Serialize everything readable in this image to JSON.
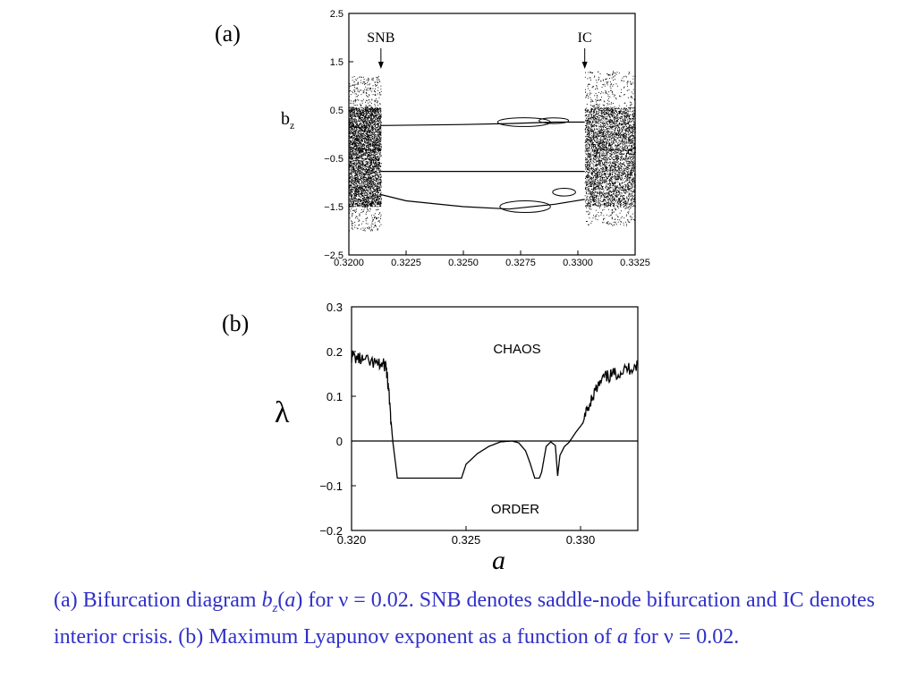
{
  "chart_data": [
    {
      "type": "scatter",
      "panel_label": "(a)",
      "ylabel": "b",
      "ylabel_sub": "z",
      "xlim": [
        0.32,
        0.3325
      ],
      "ylim": [
        -2.5,
        2.5
      ],
      "xticks": [
        "0.3200",
        "0.3225",
        "0.3250",
        "0.3275",
        "0.3300",
        "0.3325"
      ],
      "yticks": [
        "2.5",
        "1.5",
        "0.5",
        "−0.5",
        "−1.5",
        "−2.5"
      ],
      "annotations": [
        {
          "text": "SNB",
          "x": 0.3214
        },
        {
          "text": "IC",
          "x": 0.3303
        }
      ],
      "regions": [
        {
          "kind": "chaotic_band",
          "x": [
            0.32,
            0.3214
          ],
          "y": [
            -2.0,
            1.2
          ]
        },
        {
          "kind": "chaotic_band",
          "x": [
            0.3303,
            0.3325
          ],
          "y": [
            -1.9,
            1.3
          ]
        }
      ],
      "branches": [
        {
          "name": "upper",
          "x": [
            0.3214,
            0.325,
            0.327,
            0.329,
            0.3303
          ],
          "y": [
            0.18,
            0.2,
            0.22,
            0.25,
            0.25
          ]
        },
        {
          "name": "middle",
          "x": [
            0.3214,
            0.3303
          ],
          "y": [
            -0.77,
            -0.77
          ]
        },
        {
          "name": "lower",
          "x": [
            0.3214,
            0.3225,
            0.325,
            0.327,
            0.329,
            0.3303
          ],
          "y": [
            -1.25,
            -1.38,
            -1.5,
            -1.55,
            -1.45,
            -1.35
          ]
        }
      ]
    },
    {
      "type": "line",
      "panel_label": "(b)",
      "xlabel": "a",
      "ylabel": "λ",
      "xlim": [
        0.32,
        0.3325
      ],
      "ylim": [
        -0.2,
        0.3
      ],
      "xticks": [
        "0.320",
        "0.325",
        "0.330"
      ],
      "yticks": [
        "0.3",
        "0.2",
        "0.1",
        "0",
        "−0.1",
        "−0.2"
      ],
      "region_labels": [
        "CHAOS",
        "ORDER"
      ],
      "series": [
        {
          "x": [
            0.32,
            0.3205,
            0.3212,
            0.3215,
            0.3216,
            0.3218,
            0.322,
            0.3225,
            0.323,
            0.3235,
            0.324,
            0.3245,
            0.3248,
            0.325,
            0.3255,
            0.326,
            0.3265,
            0.327,
            0.3273,
            0.3276,
            0.3278,
            0.328,
            0.3282,
            0.3283,
            0.3285,
            0.3287,
            0.3289,
            0.329,
            0.3291,
            0.3293,
            0.3295,
            0.3298,
            0.3301,
            0.3305,
            0.331,
            0.3315,
            0.332,
            0.3325
          ],
          "y": [
            0.19,
            0.18,
            0.17,
            0.17,
            0.12,
            0.0,
            -0.083,
            -0.083,
            -0.083,
            -0.083,
            -0.083,
            -0.083,
            -0.083,
            -0.052,
            -0.028,
            -0.012,
            -0.002,
            0.0,
            -0.004,
            -0.022,
            -0.05,
            -0.083,
            -0.083,
            -0.07,
            -0.012,
            -0.002,
            -0.01,
            -0.078,
            -0.032,
            -0.012,
            -0.003,
            0.02,
            0.04,
            0.1,
            0.14,
            0.15,
            0.16,
            0.17
          ]
        }
      ],
      "reference_line_y": 0
    }
  ],
  "caption": {
    "p1": "(a) Bifurcation diagram ",
    "b_italic": "b",
    "z_sub": "z",
    "paren_a": "(",
    "a_italic": "a",
    "p2": ") for ν = 0.02. SNB denotes saddle-node bifurcation and IC denotes interior crisis. (b) Maximum Lyapunov exponent as a function of ",
    "a2_italic": "a",
    "p3": " for ν = 0.02."
  }
}
